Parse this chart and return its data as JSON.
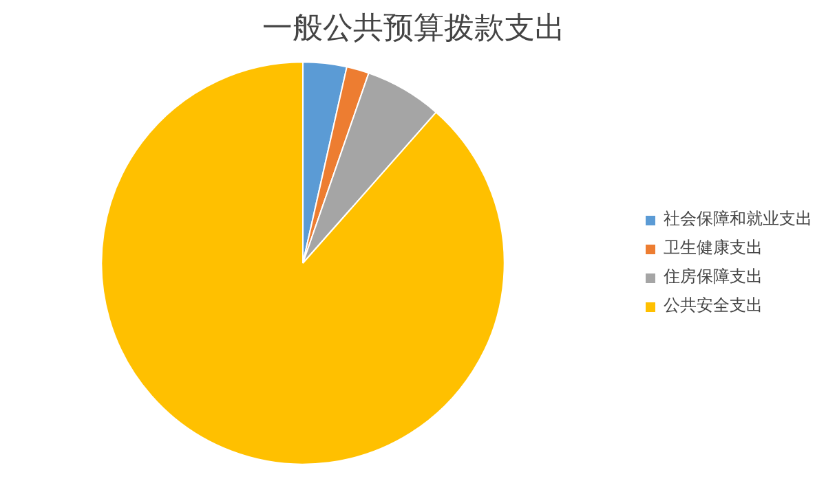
{
  "chart_data": {
    "type": "pie",
    "title": "一般公共预算拨款支出",
    "categories": [
      "社会保障和就业支出",
      "卫生健康支出",
      "住房保障支出",
      "公共安全支出"
    ],
    "values": [
      3.5,
      1.8,
      6.2,
      88.5
    ],
    "colors": [
      "#5b9bd5",
      "#ed7d31",
      "#a5a5a5",
      "#ffc000"
    ],
    "legend": "right"
  }
}
